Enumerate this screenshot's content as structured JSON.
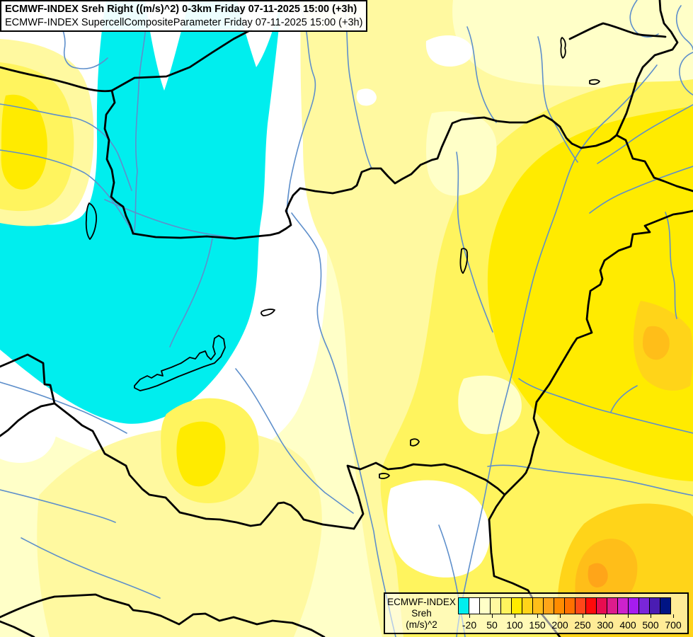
{
  "title_box": {
    "line1": "ECMWF-INDEX Sreh Right ((m/s)^2) 0-3km Friday 07-11-2025 15:00 (+3h)",
    "line2": "ECMWF-INDEX SupercellCompositeParameter Friday 07-11-2025 15:00 (+3h)"
  },
  "legend": {
    "model": "ECMWF-INDEX",
    "parameter": "Sreh",
    "units": "(m/s)^2",
    "tick_labels": [
      "-20",
      "50",
      "100",
      "150",
      "200",
      "250",
      "300",
      "400",
      "500",
      "700"
    ],
    "labeled_boundaries": [
      1,
      3,
      5,
      7,
      9,
      11,
      13,
      15,
      17,
      19
    ],
    "colors": [
      "#00EEEE",
      "#FFFFFF",
      "#FFFFC8",
      "#FFF9A0",
      "#FFF45E",
      "#FFEB00",
      "#FFD419",
      "#FFBE19",
      "#FFA519",
      "#FF8C00",
      "#FF7000",
      "#FF4719",
      "#FF0A0A",
      "#E80C50",
      "#DD1C8C",
      "#CC22CC",
      "#A61CF0",
      "#7A26D9",
      "#4A1CB3",
      "#001484"
    ]
  },
  "map": {
    "palette": {
      "negative_cyan": "#00EEEE",
      "near_zero_white": "#FFFFFF",
      "level_cream": "#FFFFC8",
      "level_pale_yellow": "#FFF9A0",
      "level_mid_yellow": "#FFF45E",
      "level_bright_yellow": "#FFEB00",
      "level_gold": "#FFD419",
      "level_amber": "#FFBE19",
      "level_orange": "#FFA519",
      "border_color": "#000000",
      "river_color": "#5E8FCB"
    },
    "features": [
      "country-borders",
      "rivers",
      "lake-balaton",
      "lake-neusiedl",
      "lake-velence",
      "negative-sreh-region-northwest",
      "high-sreh-region-east",
      "orange-maxima-southeast"
    ]
  }
}
